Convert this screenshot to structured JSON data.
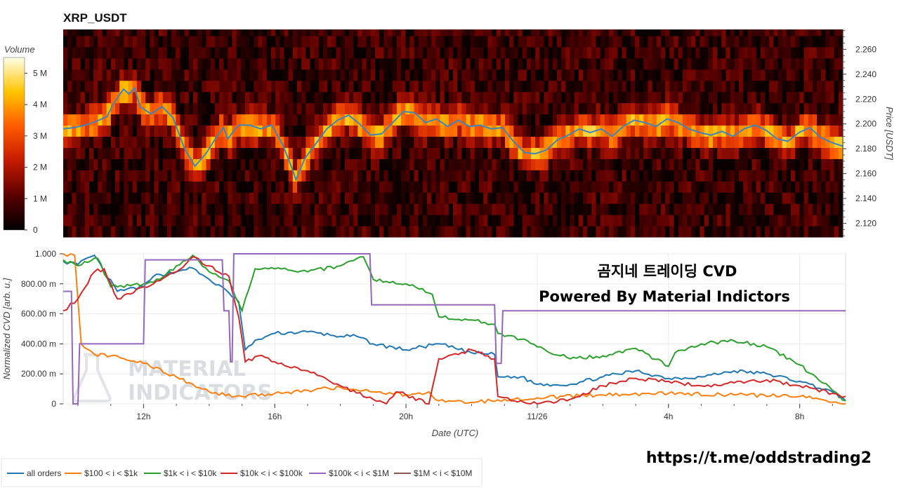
{
  "chart_data": [
    {
      "type": "heatmap",
      "title": "XRP_USDT",
      "colorbar": {
        "label": "Volume",
        "ticks": [
          "0",
          "1 M",
          "2 M",
          "3 M",
          "4 M",
          "5 M"
        ],
        "range": [
          0,
          5500000
        ]
      },
      "yaxis": {
        "label": "Price [USDT]",
        "ticks": [
          "2.120",
          "2.140",
          "2.160",
          "2.180",
          "2.200",
          "2.220",
          "2.240",
          "2.260"
        ],
        "ylim": [
          2.109,
          2.276
        ]
      },
      "price_series": {
        "t": [
          0,
          1,
          2,
          3,
          4,
          4.5,
          5,
          5.5,
          6,
          6.5,
          7,
          8,
          9,
          10,
          11,
          12,
          13,
          14,
          14.6,
          15,
          15.5,
          16,
          17,
          18,
          19,
          20,
          20.8,
          21.2,
          22,
          23,
          24,
          25,
          26,
          27,
          28,
          29,
          30,
          31,
          32,
          33,
          34,
          35,
          36,
          37,
          38,
          39,
          40,
          41,
          42,
          43,
          44,
          45,
          46,
          47,
          48,
          49,
          50,
          51,
          52,
          53,
          54,
          55,
          56,
          57,
          58,
          59,
          60,
          61,
          62,
          63,
          64,
          65,
          66,
          67,
          68,
          69,
          70,
          71
        ],
        "price": [
          2.196,
          2.197,
          2.199,
          2.202,
          2.206,
          2.215,
          2.222,
          2.228,
          2.224,
          2.229,
          2.214,
          2.208,
          2.214,
          2.205,
          2.181,
          2.166,
          2.176,
          2.19,
          2.197,
          2.188,
          2.194,
          2.199,
          2.199,
          2.196,
          2.199,
          2.183,
          2.165,
          2.155,
          2.172,
          2.184,
          2.196,
          2.203,
          2.207,
          2.2,
          2.191,
          2.192,
          2.201,
          2.21,
          2.209,
          2.201,
          2.204,
          2.198,
          2.203,
          2.198,
          2.199,
          2.196,
          2.197,
          2.186,
          2.177,
          2.176,
          2.179,
          2.187,
          2.191,
          2.196,
          2.193,
          2.196,
          2.19,
          2.198,
          2.203,
          2.201,
          2.198,
          2.204,
          2.201,
          2.196,
          2.193,
          2.191,
          2.194,
          2.19,
          2.196,
          2.199,
          2.195,
          2.188,
          2.186,
          2.193,
          2.197,
          2.189,
          2.185,
          2.182
        ]
      }
    },
    {
      "type": "line",
      "xlabel": "Date (UTC)",
      "ylabel": "Normalized CVD [arb. u.]",
      "x_ticks": [
        "12h",
        "16h",
        "20h",
        "11/26",
        "4h",
        "8h"
      ],
      "x_tick_hours": [
        12,
        16,
        20,
        24,
        28,
        32
      ],
      "xlim": [
        9.55,
        33.4
      ],
      "y_ticks": [
        "0",
        "200.00 m",
        "400.00 m",
        "600.00 m",
        "800.00 m",
        "1.000"
      ],
      "ylim": [
        0,
        1
      ],
      "series": [
        {
          "name": "all orders",
          "color": "#1f77b4",
          "x": [
            9.55,
            10.0,
            10.5,
            10.8,
            11.2,
            12.0,
            12.3,
            13.0,
            13.4,
            14.0,
            14.6,
            14.9,
            15.1,
            15.5,
            16.0,
            17.0,
            18.0,
            18.5,
            19.0,
            20.0,
            21.0,
            22.0,
            22.7,
            22.8,
            23.5,
            24.0,
            25.0,
            26.0,
            27.0,
            28.0,
            29.0,
            30.0,
            31.0,
            32.0,
            33.0,
            33.4
          ],
          "y": [
            0.95,
            0.93,
            0.99,
            0.88,
            0.75,
            0.78,
            0.85,
            0.88,
            0.91,
            0.83,
            0.74,
            0.68,
            0.36,
            0.43,
            0.47,
            0.48,
            0.45,
            0.45,
            0.4,
            0.36,
            0.4,
            0.34,
            0.33,
            0.18,
            0.18,
            0.13,
            0.13,
            0.18,
            0.22,
            0.17,
            0.18,
            0.22,
            0.2,
            0.15,
            0.08,
            0.02
          ]
        },
        {
          "name": "$100 < i < $1k",
          "color": "#ff7f0e",
          "x": [
            9.55,
            9.9,
            10.1,
            10.5,
            11.0,
            12.0,
            13.0,
            14.0,
            14.8,
            15.0,
            16.0,
            17.0,
            18.0,
            19.0,
            20.0,
            20.7,
            21.0,
            22.0,
            23.0,
            24.0,
            26.0,
            28.0,
            30.0,
            32.0,
            33.4
          ],
          "y": [
            1.0,
            0.99,
            0.4,
            0.33,
            0.32,
            0.27,
            0.18,
            0.08,
            0.05,
            0.05,
            0.07,
            0.09,
            0.11,
            0.08,
            0.06,
            0.08,
            0.02,
            0.01,
            0.03,
            0.04,
            0.06,
            0.07,
            0.06,
            0.05,
            0.0
          ]
        },
        {
          "name": "$1k < i < $10k",
          "color": "#2ca02c",
          "x": [
            9.55,
            10.0,
            10.6,
            11.0,
            12.0,
            12.5,
            13.0,
            13.5,
            14.0,
            14.6,
            15.0,
            15.4,
            16.0,
            17.0,
            18.0,
            18.7,
            19.0,
            20.0,
            20.8,
            21.0,
            22.0,
            22.7,
            22.8,
            23.5,
            24.0,
            25.0,
            26.0,
            27.0,
            28.0,
            28.2,
            29.0,
            30.0,
            31.0,
            32.0,
            33.0,
            33.4
          ],
          "y": [
            0.96,
            0.92,
            0.97,
            0.78,
            0.8,
            0.83,
            0.92,
            0.99,
            0.88,
            0.82,
            0.62,
            0.9,
            0.9,
            0.88,
            0.92,
            0.98,
            0.83,
            0.8,
            0.73,
            0.58,
            0.56,
            0.53,
            0.47,
            0.43,
            0.38,
            0.3,
            0.32,
            0.37,
            0.25,
            0.34,
            0.4,
            0.42,
            0.38,
            0.26,
            0.09,
            0.02
          ]
        },
        {
          "name": "$10k < i < $100k",
          "color": "#d62728",
          "x": [
            9.55,
            10.0,
            10.5,
            10.8,
            11.2,
            12.0,
            12.3,
            13.0,
            13.5,
            14.0,
            14.6,
            14.9,
            15.1,
            15.5,
            16.0,
            17.0,
            18.0,
            19.0,
            19.4,
            19.7,
            20.0,
            20.7,
            21.0,
            22.0,
            22.7,
            22.8,
            23.3,
            24.0,
            25.0,
            26.0,
            27.0,
            28.0,
            29.0,
            30.0,
            31.0,
            32.0,
            33.0,
            33.4
          ],
          "y": [
            0.62,
            0.7,
            0.88,
            0.9,
            0.7,
            0.78,
            0.8,
            0.88,
            0.98,
            0.92,
            0.85,
            0.58,
            0.28,
            0.32,
            0.28,
            0.22,
            0.12,
            0.03,
            0.0,
            0.08,
            0.06,
            0.0,
            0.3,
            0.36,
            0.3,
            0.05,
            0.02,
            0.0,
            0.03,
            0.12,
            0.17,
            0.15,
            0.12,
            0.14,
            0.16,
            0.12,
            0.07,
            0.05
          ]
        },
        {
          "name": "$100k < i < $1M",
          "color": "#9467bd",
          "x": [
            9.55,
            9.8,
            9.85,
            10.0,
            10.05,
            12.0,
            12.05,
            14.4,
            14.45,
            14.6,
            14.65,
            14.7,
            14.75,
            18.9,
            18.95,
            22.7,
            22.75,
            22.9,
            22.95,
            33.4
          ],
          "y": [
            0.75,
            0.75,
            0.0,
            0.0,
            0.4,
            0.4,
            0.96,
            0.96,
            0.62,
            0.62,
            0.28,
            0.28,
            1.0,
            1.0,
            0.66,
            0.66,
            0.27,
            0.27,
            0.62,
            0.62
          ]
        },
        {
          "name": "$1M < i < $10M",
          "color": "#8c564b",
          "x": [],
          "y": []
        }
      ]
    }
  ],
  "annotation": {
    "line1": "곰지네 트레이딩 CVD",
    "line2": "Powered By Material Indictors"
  },
  "watermark": {
    "line1": "MATERIAL",
    "line2": "INDICATORS"
  },
  "link": "https://t.me/oddstrading2"
}
